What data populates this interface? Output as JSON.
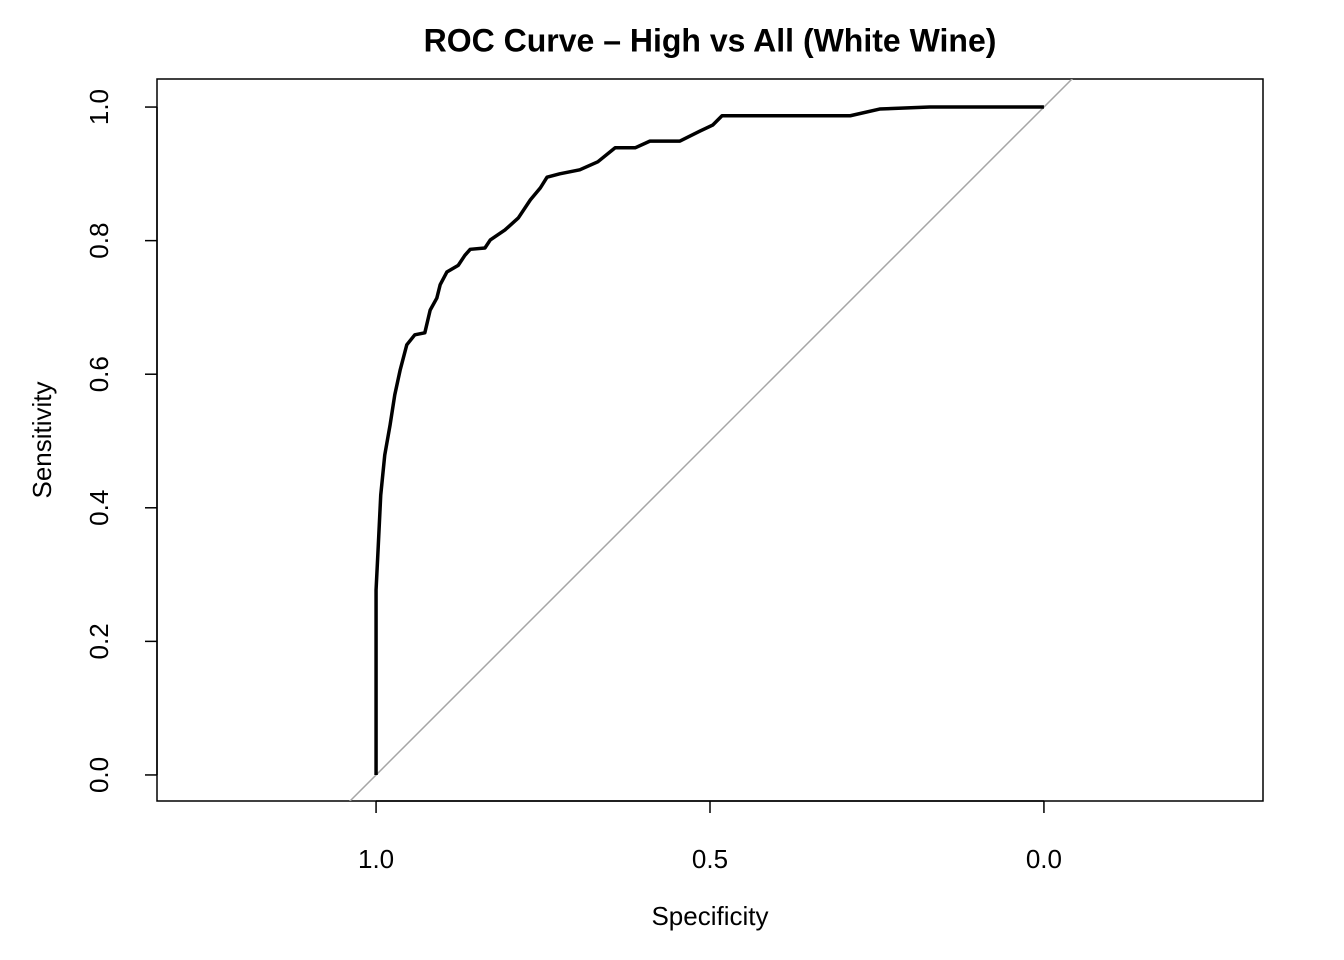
{
  "chart_data": {
    "type": "line",
    "title": "ROC Curve – High vs All (White Wine)",
    "x_label": "Specificity",
    "y_label": "Sensitivity",
    "xlim": [
      1.328,
      -0.328
    ],
    "ylim": [
      -0.039,
      1.042
    ],
    "xticks": [
      {
        "value": 1,
        "label": "1.0"
      },
      0.5,
      {
        "value": 0,
        "label": "0.0"
      }
    ],
    "yticks": [
      {
        "value": 0,
        "label": "0.0"
      },
      0.2,
      0.4,
      0.6,
      0.8,
      {
        "value": 1,
        "label": "1.0"
      }
    ],
    "reference_diagonal": true,
    "series": [
      {
        "color": "#000000",
        "x": [
          1.0,
          1.0,
          0.997,
          0.993,
          0.987,
          0.979,
          0.972,
          0.964,
          0.954,
          0.942,
          0.927,
          0.919,
          0.909,
          0.904,
          0.894,
          0.877,
          0.867,
          0.859,
          0.837,
          0.829,
          0.807,
          0.787,
          0.769,
          0.754,
          0.744,
          0.725,
          0.695,
          0.668,
          0.642,
          0.612,
          0.59,
          0.545,
          0.515,
          0.496,
          0.482,
          0.29,
          0.246,
          0.171,
          0.0
        ],
        "values": [
          0.0,
          0.277,
          0.337,
          0.419,
          0.479,
          0.524,
          0.569,
          0.606,
          0.644,
          0.659,
          0.662,
          0.696,
          0.714,
          0.734,
          0.753,
          0.763,
          0.778,
          0.787,
          0.789,
          0.801,
          0.816,
          0.834,
          0.861,
          0.879,
          0.895,
          0.9,
          0.906,
          0.918,
          0.939,
          0.939,
          0.949,
          0.949,
          0.964,
          0.973,
          0.987,
          0.987,
          0.997,
          1.0,
          1.0
        ]
      }
    ]
  }
}
